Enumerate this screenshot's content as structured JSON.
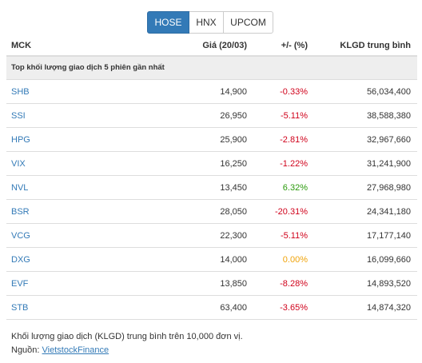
{
  "tabs": [
    {
      "label": "HOSE",
      "active": true
    },
    {
      "label": "HNX",
      "active": false
    },
    {
      "label": "UPCOM",
      "active": false
    }
  ],
  "columns": {
    "symbol": "MCK",
    "price": "Giá (20/03)",
    "change": "+/- (%)",
    "volume": "KLGD trung bình"
  },
  "group_title": "Top khối lượng giao dịch 5 phiên gần nhất",
  "rows": [
    {
      "symbol": "SHB",
      "price": "14,900",
      "change": "-0.33%",
      "volume": "56,034,400",
      "direction": "down"
    },
    {
      "symbol": "SSI",
      "price": "26,950",
      "change": "-5.11%",
      "volume": "38,588,380",
      "direction": "down"
    },
    {
      "symbol": "HPG",
      "price": "25,900",
      "change": "-2.81%",
      "volume": "32,967,660",
      "direction": "down"
    },
    {
      "symbol": "VIX",
      "price": "16,250",
      "change": "-1.22%",
      "volume": "31,241,900",
      "direction": "down"
    },
    {
      "symbol": "NVL",
      "price": "13,450",
      "change": "6.32%",
      "volume": "27,968,980",
      "direction": "up"
    },
    {
      "symbol": "BSR",
      "price": "28,050",
      "change": "-20.31%",
      "volume": "24,341,180",
      "direction": "down"
    },
    {
      "symbol": "VCG",
      "price": "22,300",
      "change": "-5.11%",
      "volume": "17,177,140",
      "direction": "down"
    },
    {
      "symbol": "DXG",
      "price": "14,000",
      "change": "0.00%",
      "volume": "16,099,660",
      "direction": "flat"
    },
    {
      "symbol": "EVF",
      "price": "13,850",
      "change": "-8.28%",
      "volume": "14,893,520",
      "direction": "down"
    },
    {
      "symbol": "STB",
      "price": "63,400",
      "change": "-3.65%",
      "volume": "14,874,320",
      "direction": "down"
    }
  ],
  "colors": {
    "down": "#d0021b",
    "up": "#2b9a0c",
    "flat": "#f0a30a",
    "accent": "#337ab7"
  },
  "footer": {
    "note": "Khối lượng giao dịch (KLGD) trung bình trên 10,000 đơn vị.",
    "source_label": "Nguồn:",
    "source_link": "VietstockFinance"
  }
}
